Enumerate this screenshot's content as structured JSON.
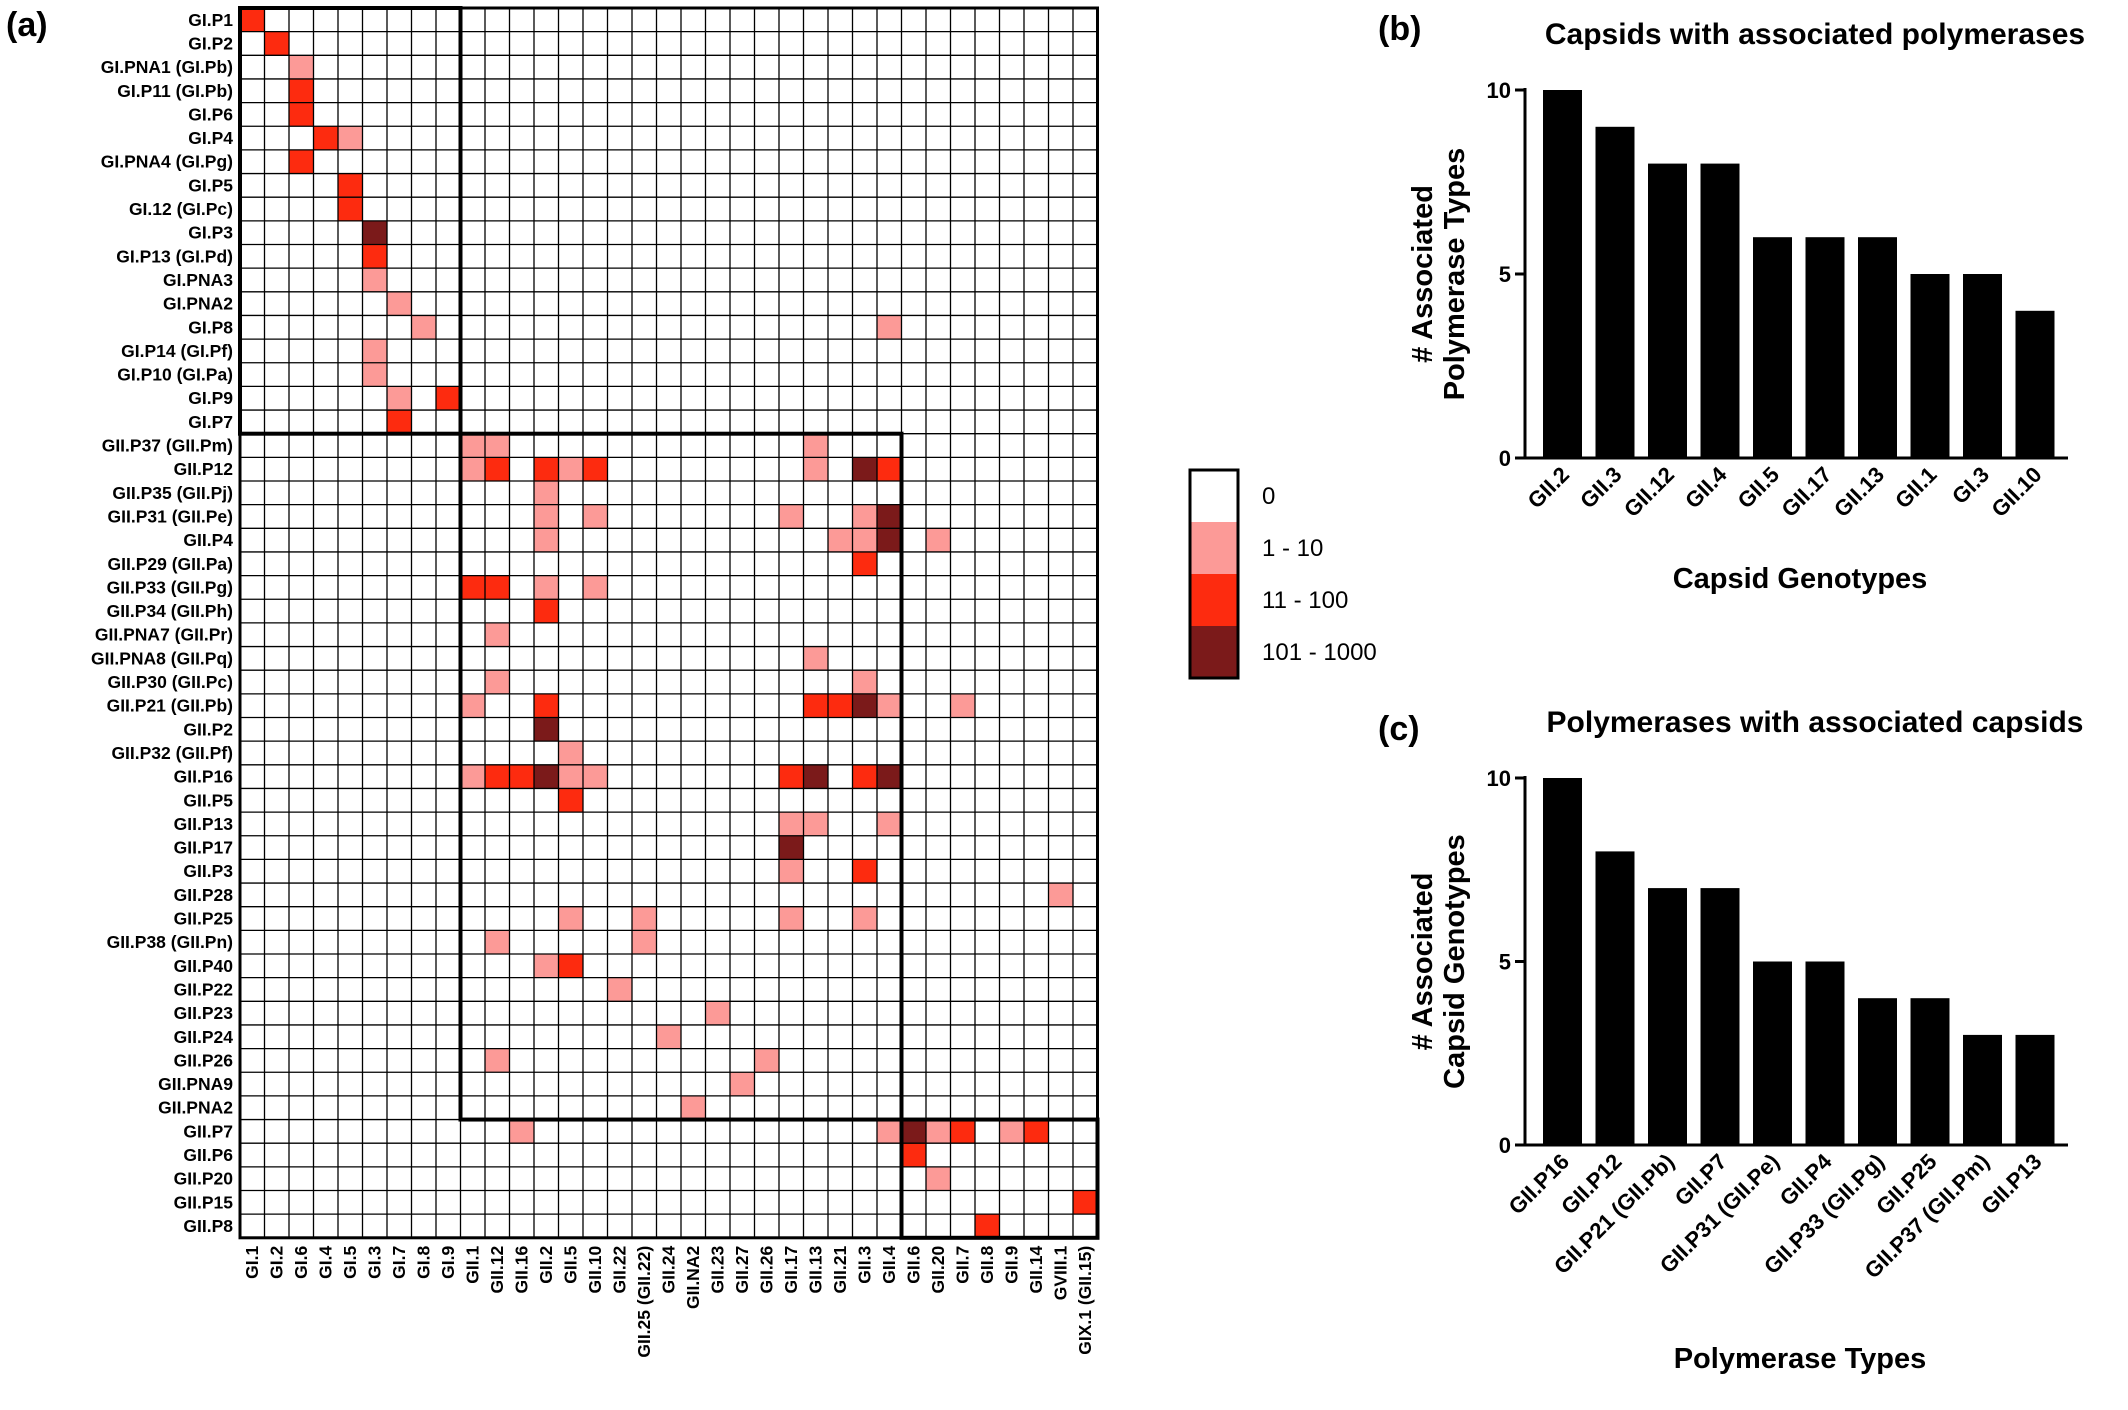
{
  "chart_data": [
    {
      "type": "heatmap",
      "panel": "(a)",
      "rows": [
        "GI.P1",
        "GI.P2",
        "GI.PNA1 (GI.Pb)",
        "GI.P11 (GI.Pb)",
        "GI.P6",
        "GI.P4",
        "GI.PNA4 (GI.Pg)",
        "GI.P5",
        "GI.12 (GI.Pc)",
        "GI.P3",
        "GI.P13 (GI.Pd)",
        "GI.PNA3",
        "GI.PNA2",
        "GI.P8",
        "GI.P14 (GI.Pf)",
        "GI.P10 (GI.Pa)",
        "GI.P9",
        "GI.P7",
        "GII.P37 (GII.Pm)",
        "GII.P12",
        "GII.P35 (GII.Pj)",
        "GII.P31 (GII.Pe)",
        "GII.P4",
        "GII.P29 (GII.Pa)",
        "GII.P33 (GII.Pg)",
        "GII.P34 (GII.Ph)",
        "GII.PNA7 (GII.Pr)",
        "GII.PNA8 (GII.Pq)",
        "GII.P30 (GII.Pc)",
        "GII.P21 (GII.Pb)",
        "GII.P2",
        "GII.P32 (GII.Pf)",
        "GII.P16",
        "GII.P5",
        "GII.P13",
        "GII.P17",
        "GII.P3",
        "GII.P28",
        "GII.P25",
        "GII.P38 (GII.Pn)",
        "GII.P40",
        "GII.P22",
        "GII.P23",
        "GII.P24",
        "GII.P26",
        "GII.PNA9",
        "GII.PNA2",
        "GII.P7",
        "GII.P6",
        "GII.P20",
        "GII.P15",
        "GII.P8"
      ],
      "columns": [
        "GI.1",
        "GI.2",
        "GI.6",
        "GI.4",
        "GI.5",
        "GI.3",
        "GI.7",
        "GI.8",
        "GI.9",
        "GII.1",
        "GII.12",
        "GII.16",
        "GII.2",
        "GII.5",
        "GII.10",
        "GII.22",
        "GII.25 (GII.22)",
        "GII.24",
        "GII.NA2",
        "GII.23",
        "GII.27",
        "GII.26",
        "GII.17",
        "GII.13",
        "GII.21",
        "GII.3",
        "GII.4",
        "GII.6",
        "GII.20",
        "GII.7",
        "GII.8",
        "GII.9",
        "GII.14",
        "GVIII.1",
        "GIX.1 (GII.15)"
      ],
      "levels": [
        "0",
        "1 - 10",
        "11 - 100",
        "101 - 1000"
      ],
      "level_colors": [
        "#ffffff",
        "#fc9a97",
        "#fd2b0f",
        "#7b1a1a"
      ],
      "cells": [
        [
          0,
          0,
          2
        ],
        [
          1,
          1,
          2
        ],
        [
          2,
          2,
          1
        ],
        [
          3,
          2,
          2
        ],
        [
          4,
          2,
          2
        ],
        [
          5,
          3,
          2
        ],
        [
          5,
          4,
          1
        ],
        [
          6,
          2,
          2
        ],
        [
          7,
          4,
          2
        ],
        [
          8,
          4,
          2
        ],
        [
          9,
          5,
          3
        ],
        [
          10,
          5,
          2
        ],
        [
          11,
          5,
          1
        ],
        [
          12,
          6,
          1
        ],
        [
          13,
          7,
          1
        ],
        [
          13,
          26,
          1
        ],
        [
          14,
          5,
          1
        ],
        [
          15,
          5,
          1
        ],
        [
          16,
          6,
          1
        ],
        [
          16,
          8,
          2
        ],
        [
          17,
          6,
          2
        ],
        [
          18,
          9,
          1
        ],
        [
          18,
          10,
          1
        ],
        [
          18,
          23,
          1
        ],
        [
          19,
          9,
          1
        ],
        [
          19,
          10,
          2
        ],
        [
          19,
          12,
          2
        ],
        [
          19,
          13,
          1
        ],
        [
          19,
          14,
          2
        ],
        [
          19,
          23,
          1
        ],
        [
          19,
          25,
          3
        ],
        [
          19,
          26,
          2
        ],
        [
          20,
          12,
          1
        ],
        [
          21,
          12,
          1
        ],
        [
          21,
          14,
          1
        ],
        [
          21,
          22,
          1
        ],
        [
          21,
          25,
          1
        ],
        [
          21,
          26,
          3
        ],
        [
          22,
          12,
          1
        ],
        [
          22,
          24,
          1
        ],
        [
          22,
          25,
          1
        ],
        [
          22,
          26,
          3
        ],
        [
          22,
          28,
          1
        ],
        [
          23,
          25,
          2
        ],
        [
          24,
          9,
          2
        ],
        [
          24,
          10,
          2
        ],
        [
          24,
          12,
          1
        ],
        [
          24,
          14,
          1
        ],
        [
          25,
          12,
          2
        ],
        [
          26,
          10,
          1
        ],
        [
          27,
          23,
          1
        ],
        [
          28,
          10,
          1
        ],
        [
          28,
          25,
          1
        ],
        [
          29,
          9,
          1
        ],
        [
          29,
          12,
          2
        ],
        [
          29,
          23,
          2
        ],
        [
          29,
          24,
          2
        ],
        [
          29,
          25,
          3
        ],
        [
          29,
          26,
          1
        ],
        [
          29,
          29,
          1
        ],
        [
          30,
          12,
          3
        ],
        [
          31,
          13,
          1
        ],
        [
          32,
          9,
          1
        ],
        [
          32,
          10,
          2
        ],
        [
          32,
          11,
          2
        ],
        [
          32,
          12,
          3
        ],
        [
          32,
          13,
          1
        ],
        [
          32,
          14,
          1
        ],
        [
          32,
          22,
          2
        ],
        [
          32,
          23,
          3
        ],
        [
          32,
          25,
          2
        ],
        [
          32,
          26,
          3
        ],
        [
          33,
          13,
          2
        ],
        [
          34,
          22,
          1
        ],
        [
          34,
          23,
          1
        ],
        [
          34,
          26,
          1
        ],
        [
          35,
          22,
          3
        ],
        [
          36,
          22,
          1
        ],
        [
          36,
          25,
          2
        ],
        [
          37,
          33,
          1
        ],
        [
          38,
          13,
          1
        ],
        [
          38,
          16,
          1
        ],
        [
          38,
          22,
          1
        ],
        [
          38,
          25,
          1
        ],
        [
          39,
          10,
          1
        ],
        [
          39,
          16,
          1
        ],
        [
          40,
          12,
          1
        ],
        [
          40,
          13,
          2
        ],
        [
          41,
          15,
          1
        ],
        [
          42,
          19,
          1
        ],
        [
          43,
          17,
          1
        ],
        [
          44,
          10,
          1
        ],
        [
          44,
          21,
          1
        ],
        [
          45,
          20,
          1
        ],
        [
          46,
          18,
          1
        ],
        [
          47,
          11,
          1
        ],
        [
          47,
          26,
          1
        ],
        [
          47,
          27,
          3
        ],
        [
          47,
          28,
          1
        ],
        [
          47,
          29,
          2
        ],
        [
          47,
          31,
          1
        ],
        [
          47,
          32,
          2
        ],
        [
          48,
          27,
          2
        ],
        [
          49,
          28,
          1
        ],
        [
          50,
          34,
          2
        ],
        [
          51,
          30,
          2
        ]
      ],
      "blocks": [
        [
          0,
          17,
          0,
          8
        ],
        [
          18,
          46,
          9,
          26
        ],
        [
          47,
          51,
          27,
          34
        ]
      ]
    },
    {
      "type": "bar",
      "panel": "(b)",
      "title": "Capsids with associated polymerases",
      "xlabel": "Capsid Genotypes",
      "ylabel": "# Associated Polymerase Types",
      "categories": [
        "GII.2",
        "GII.3",
        "GII.12",
        "GII.4",
        "GII.5",
        "GII.17",
        "GII.13",
        "GII.1",
        "GI.3",
        "GII.10"
      ],
      "values": [
        10,
        9,
        8,
        8,
        6,
        6,
        6,
        5,
        5,
        4
      ],
      "ylim": [
        0,
        10
      ],
      "yticks": [
        "0",
        "5",
        "10"
      ]
    },
    {
      "type": "bar",
      "panel": "(c)",
      "title": "Polymerases with associated capsids",
      "xlabel": "Polymerase Types",
      "ylabel": "# Associated Capsid Genotypes",
      "categories": [
        "GII.P16",
        "GII.P12",
        "GII.P21 (GII.Pb)",
        "GII.P7",
        "GII.P31 (GII.Pe)",
        "GII.P4",
        "GII.P33 (GII.Pg)",
        "GII.P25",
        "GII.P37 (GII.Pm)",
        "GII.P13"
      ],
      "values": [
        10,
        8,
        7,
        7,
        5,
        5,
        4,
        4,
        3,
        3
      ],
      "ylim": [
        0,
        10
      ],
      "yticks": [
        "0",
        "5",
        "10"
      ]
    }
  ]
}
